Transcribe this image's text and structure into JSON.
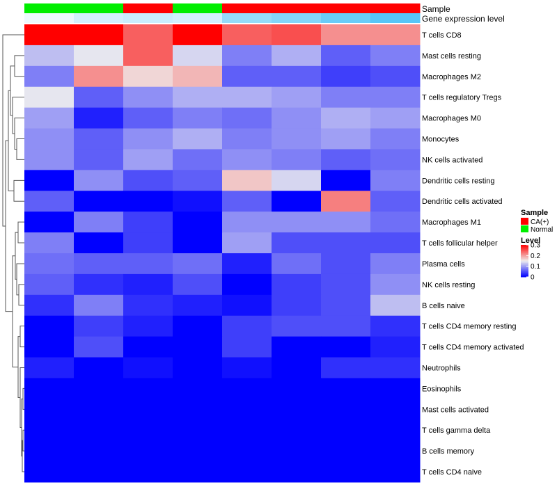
{
  "chart_data": {
    "type": "heatmap",
    "annotation_rows": [
      {
        "label": "Sample",
        "values": [
          "Normal",
          "Normal",
          "CA(+)",
          "Normal",
          "CA(+)",
          "CA(+)",
          "CA(+)",
          "CA(+)"
        ]
      },
      {
        "label": "Gene expression level",
        "values": [
          0.02,
          0.05,
          0.06,
          0.05,
          0.12,
          0.14,
          0.17,
          0.19
        ]
      }
    ],
    "rows": [
      "T cells CD8",
      "Mast cells resting",
      "Macrophages M2",
      "T cells regulatory  Tregs",
      "Macrophages M0",
      "Monocytes",
      "NK cells activated",
      "Dendritic cells resting",
      "Dendritic cells activated",
      "Macrophages M1",
      "T cells follicular helper",
      "Plasma cells",
      "NK cells resting",
      "B cells naive",
      "T cells CD4 memory resting",
      "T cells CD4 memory activated",
      "Neutrophils",
      "Eosinophils",
      "Mast cells activated",
      "T cells gamma delta",
      "B cells memory",
      "T cells CD4 naive"
    ],
    "matrix": [
      [
        0.3,
        0.3,
        0.24,
        0.3,
        0.24,
        0.25,
        0.21,
        0.21
      ],
      [
        0.12,
        0.145,
        0.24,
        0.135,
        0.08,
        0.11,
        0.06,
        0.08
      ],
      [
        0.08,
        0.21,
        0.165,
        0.185,
        0.06,
        0.06,
        0.04,
        0.05
      ],
      [
        0.145,
        0.06,
        0.09,
        0.11,
        0.11,
        0.1,
        0.08,
        0.08
      ],
      [
        0.1,
        0.02,
        0.06,
        0.08,
        0.07,
        0.09,
        0.11,
        0.1
      ],
      [
        0.09,
        0.06,
        0.09,
        0.11,
        0.08,
        0.09,
        0.1,
        0.08
      ],
      [
        0.09,
        0.06,
        0.1,
        0.07,
        0.09,
        0.08,
        0.06,
        0.07
      ],
      [
        0.0,
        0.09,
        0.05,
        0.06,
        0.175,
        0.135,
        0.0,
        0.08
      ],
      [
        0.06,
        0.0,
        0.0,
        0.01,
        0.06,
        0.0,
        0.22,
        0.06
      ],
      [
        0.0,
        0.08,
        0.04,
        0.0,
        0.09,
        0.09,
        0.09,
        0.07
      ],
      [
        0.08,
        0.0,
        0.04,
        0.0,
        0.1,
        0.05,
        0.05,
        0.05
      ],
      [
        0.07,
        0.06,
        0.06,
        0.07,
        0.02,
        0.07,
        0.05,
        0.08
      ],
      [
        0.06,
        0.03,
        0.02,
        0.05,
        0.0,
        0.04,
        0.05,
        0.09
      ],
      [
        0.03,
        0.08,
        0.03,
        0.02,
        0.01,
        0.04,
        0.05,
        0.12
      ],
      [
        0.0,
        0.04,
        0.02,
        0.0,
        0.04,
        0.05,
        0.05,
        0.03
      ],
      [
        0.0,
        0.05,
        0.0,
        0.0,
        0.04,
        0.0,
        0.0,
        0.02
      ],
      [
        0.02,
        0.0,
        0.01,
        0.0,
        0.01,
        0.0,
        0.03,
        0.03
      ],
      [
        0.0,
        0.0,
        0.0,
        0.0,
        0.0,
        0.0,
        0.0,
        0.0
      ],
      [
        0.0,
        0.0,
        0.0,
        0.0,
        0.0,
        0.0,
        0.0,
        0.0
      ],
      [
        0.0,
        0.0,
        0.0,
        0.0,
        0.0,
        0.0,
        0.0,
        0.0
      ],
      [
        0.0,
        0.0,
        0.0,
        0.0,
        0.0,
        0.0,
        0.0,
        0.0
      ],
      [
        0.0,
        0.0,
        0.0,
        0.0,
        0.0,
        0.0,
        0.0,
        0.0
      ]
    ],
    "color_scale": {
      "min": 0,
      "mid": 0.15,
      "max": 0.3,
      "low": "#0000ff",
      "mid_color": "#eeeeee",
      "high": "#ff0000"
    },
    "gene_scale": {
      "min": 0,
      "max": 0.2,
      "low": "#ffffff",
      "high": "#4fc3f7"
    },
    "legends": {
      "sample": {
        "title": "Sample",
        "items": [
          {
            "label": "CA(+)",
            "color": "#ff0000"
          },
          {
            "label": "Normal",
            "color": "#00ee00"
          }
        ]
      },
      "level": {
        "title": "Level",
        "ticks": [
          {
            "value": 0.3,
            "label": "0.3"
          },
          {
            "value": 0.2,
            "label": "0.2"
          },
          {
            "value": 0.1,
            "label": "0.1"
          },
          {
            "value": 0,
            "label": "0"
          }
        ]
      }
    },
    "dendrogram": "row",
    "title": "",
    "xlabel": "",
    "ylabel": ""
  }
}
